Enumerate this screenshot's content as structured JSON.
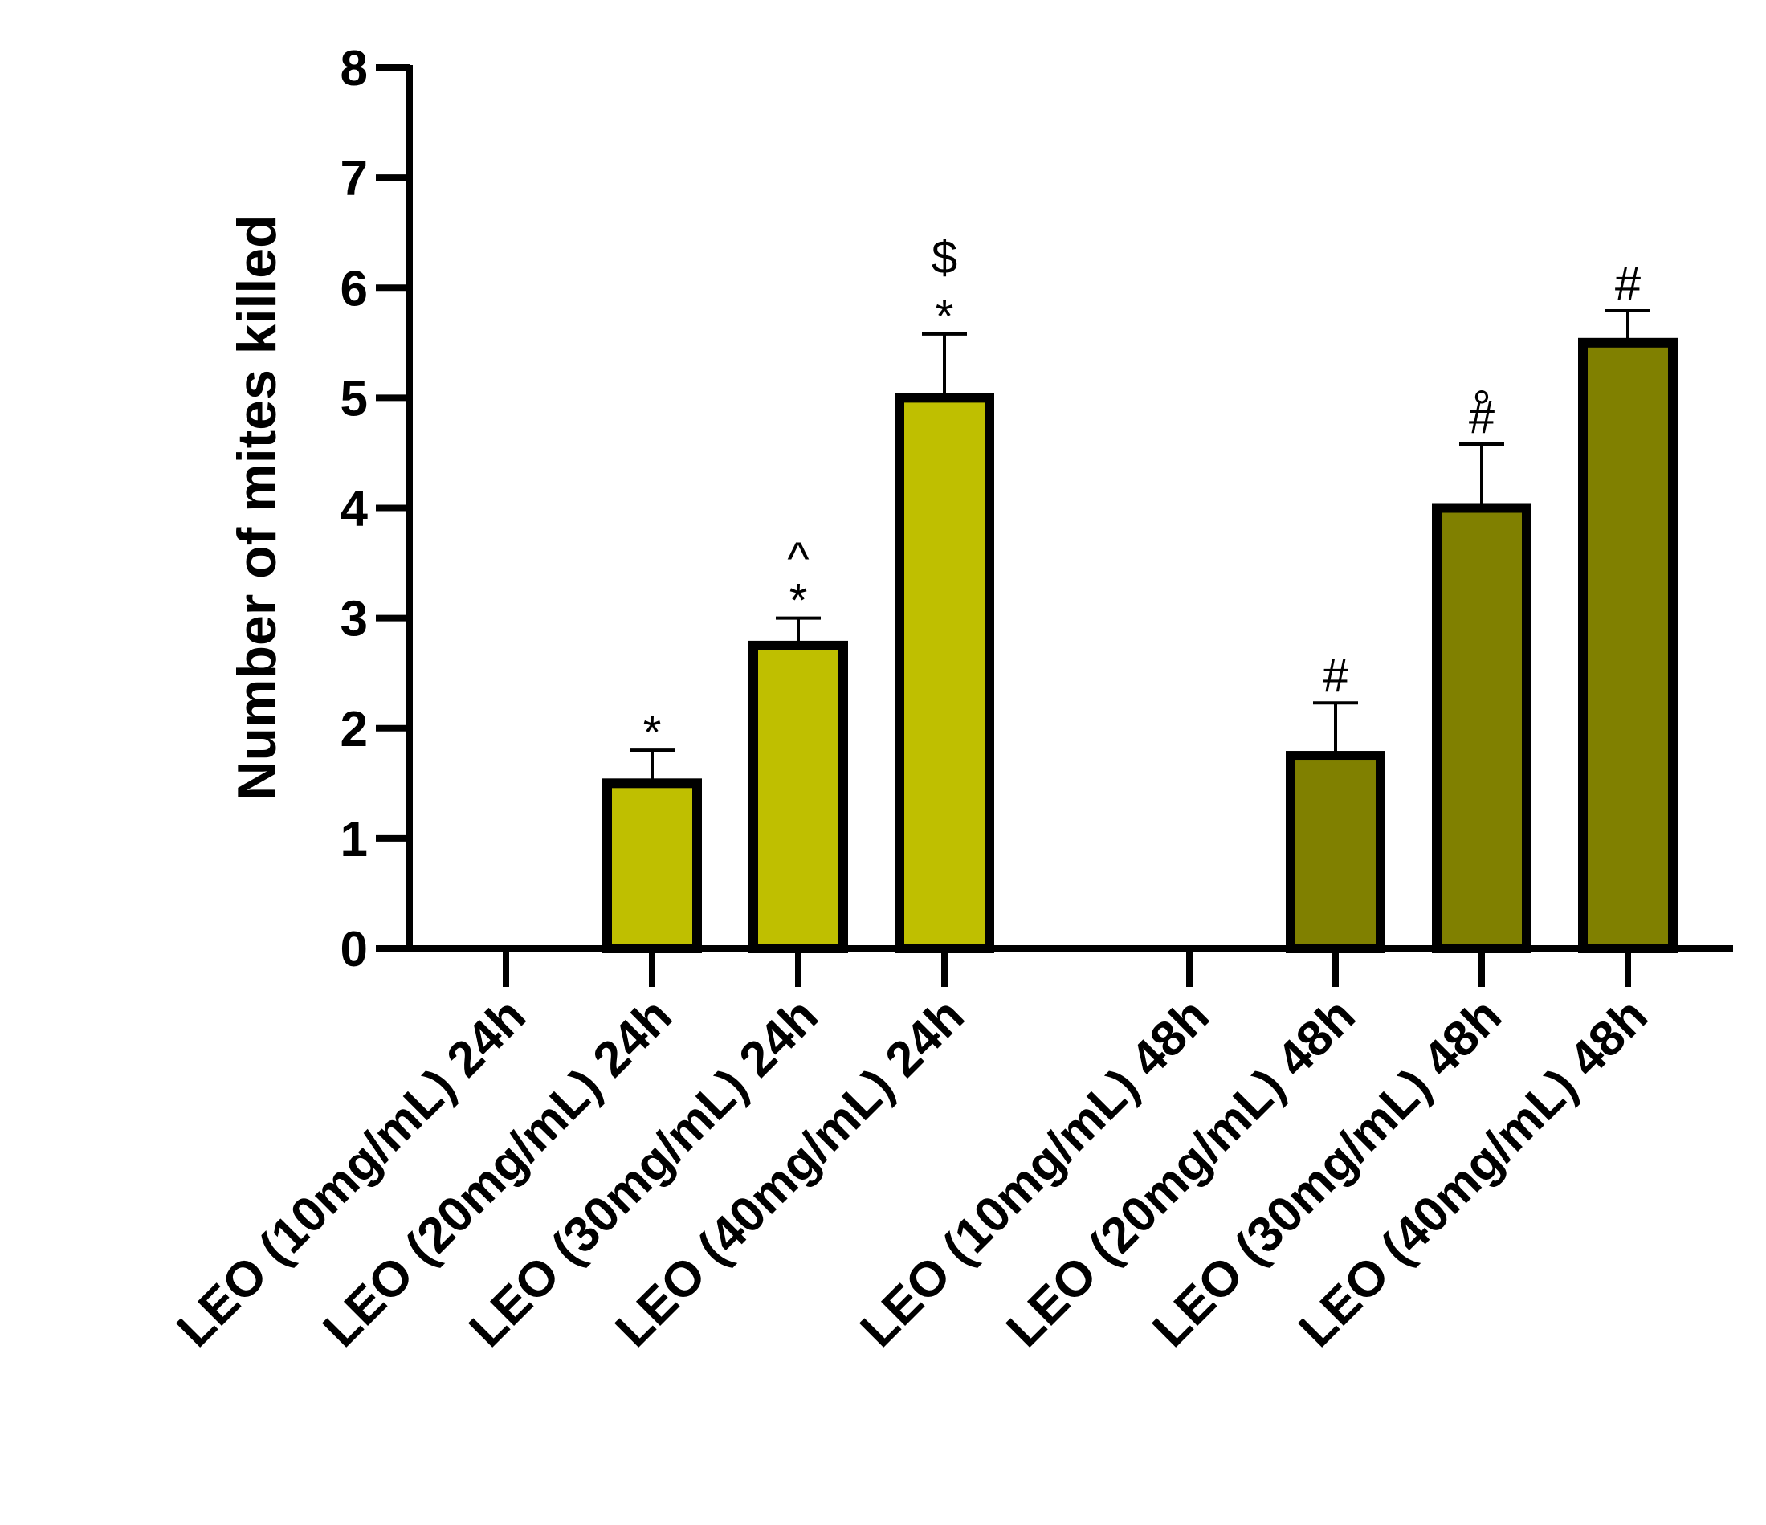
{
  "chart_data": {
    "type": "bar",
    "title": "",
    "xlabel": "",
    "ylabel": "Number of mites killed",
    "ylim": [
      0,
      8
    ],
    "yticks": [
      0,
      1,
      2,
      3,
      4,
      5,
      6,
      7,
      8
    ],
    "grid": false,
    "legend": "none",
    "groups": [
      {
        "timepoint": "24h",
        "color": "#BFBF00",
        "bars": [
          {
            "category": "LEO (10mg/mL) 24h",
            "value": 0,
            "error": 0,
            "annotations": []
          },
          {
            "category": "LEO (20mg/mL) 24h",
            "value": 1.5,
            "error": 0.3,
            "annotations": [
              "*"
            ]
          },
          {
            "category": "LEO (30mg/mL) 24h",
            "value": 2.75,
            "error": 0.25,
            "annotations": [
              "*",
              "^"
            ]
          },
          {
            "category": "LEO (40mg/mL) 24h",
            "value": 5.0,
            "error": 0.58,
            "annotations": [
              "*",
              "$"
            ]
          }
        ]
      },
      {
        "timepoint": "48h",
        "color": "#808000",
        "bars": [
          {
            "category": "LEO (10mg/mL) 48h",
            "value": 0,
            "error": 0,
            "annotations": []
          },
          {
            "category": "LEO (20mg/mL) 48h",
            "value": 1.75,
            "error": 0.48,
            "annotations": [
              "#"
            ]
          },
          {
            "category": "LEO (30mg/mL) 48h",
            "value": 4.0,
            "error": 0.58,
            "annotations": [
              "#",
              "°"
            ]
          },
          {
            "category": "LEO (40mg/mL) 48h",
            "value": 5.5,
            "error": 0.29,
            "annotations": [
              "#"
            ]
          }
        ]
      }
    ]
  }
}
